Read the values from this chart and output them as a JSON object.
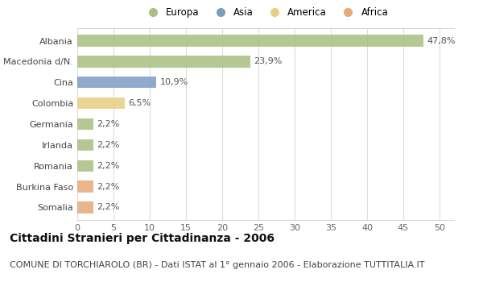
{
  "categories": [
    "Albania",
    "Macedonia d/N.",
    "Cina",
    "Colombia",
    "Germania",
    "Irlanda",
    "Romania",
    "Burkina Faso",
    "Somalia"
  ],
  "values": [
    47.8,
    23.9,
    10.9,
    6.5,
    2.2,
    2.2,
    2.2,
    2.2,
    2.2
  ],
  "labels": [
    "47,8%",
    "23,9%",
    "10,9%",
    "6,5%",
    "2,2%",
    "2,2%",
    "2,2%",
    "2,2%",
    "2,2%"
  ],
  "colors": [
    "#a8bf80",
    "#a8bf80",
    "#7b9dc0",
    "#e8ce80",
    "#a8bf80",
    "#a8bf80",
    "#a8bf80",
    "#e8a878",
    "#e8a878"
  ],
  "legend": [
    {
      "label": "Europa",
      "color": "#a8bf80"
    },
    {
      "label": "Asia",
      "color": "#7b9dc0"
    },
    {
      "label": "America",
      "color": "#e8ce80"
    },
    {
      "label": "Africa",
      "color": "#e8a878"
    }
  ],
  "xlim": [
    0,
    52
  ],
  "xticks": [
    0,
    5,
    10,
    15,
    20,
    25,
    30,
    35,
    40,
    45,
    50
  ],
  "title": "Cittadini Stranieri per Cittadinanza - 2006",
  "subtitle": "COMUNE DI TORCHIAROLO (BR) - Dati ISTAT al 1° gennaio 2006 - Elaborazione TUTTITALIA.IT",
  "bg_color": "#ffffff",
  "bar_height": 0.55,
  "title_fontsize": 10,
  "subtitle_fontsize": 8,
  "tick_fontsize": 8,
  "label_fontsize": 8,
  "legend_fontsize": 8.5
}
